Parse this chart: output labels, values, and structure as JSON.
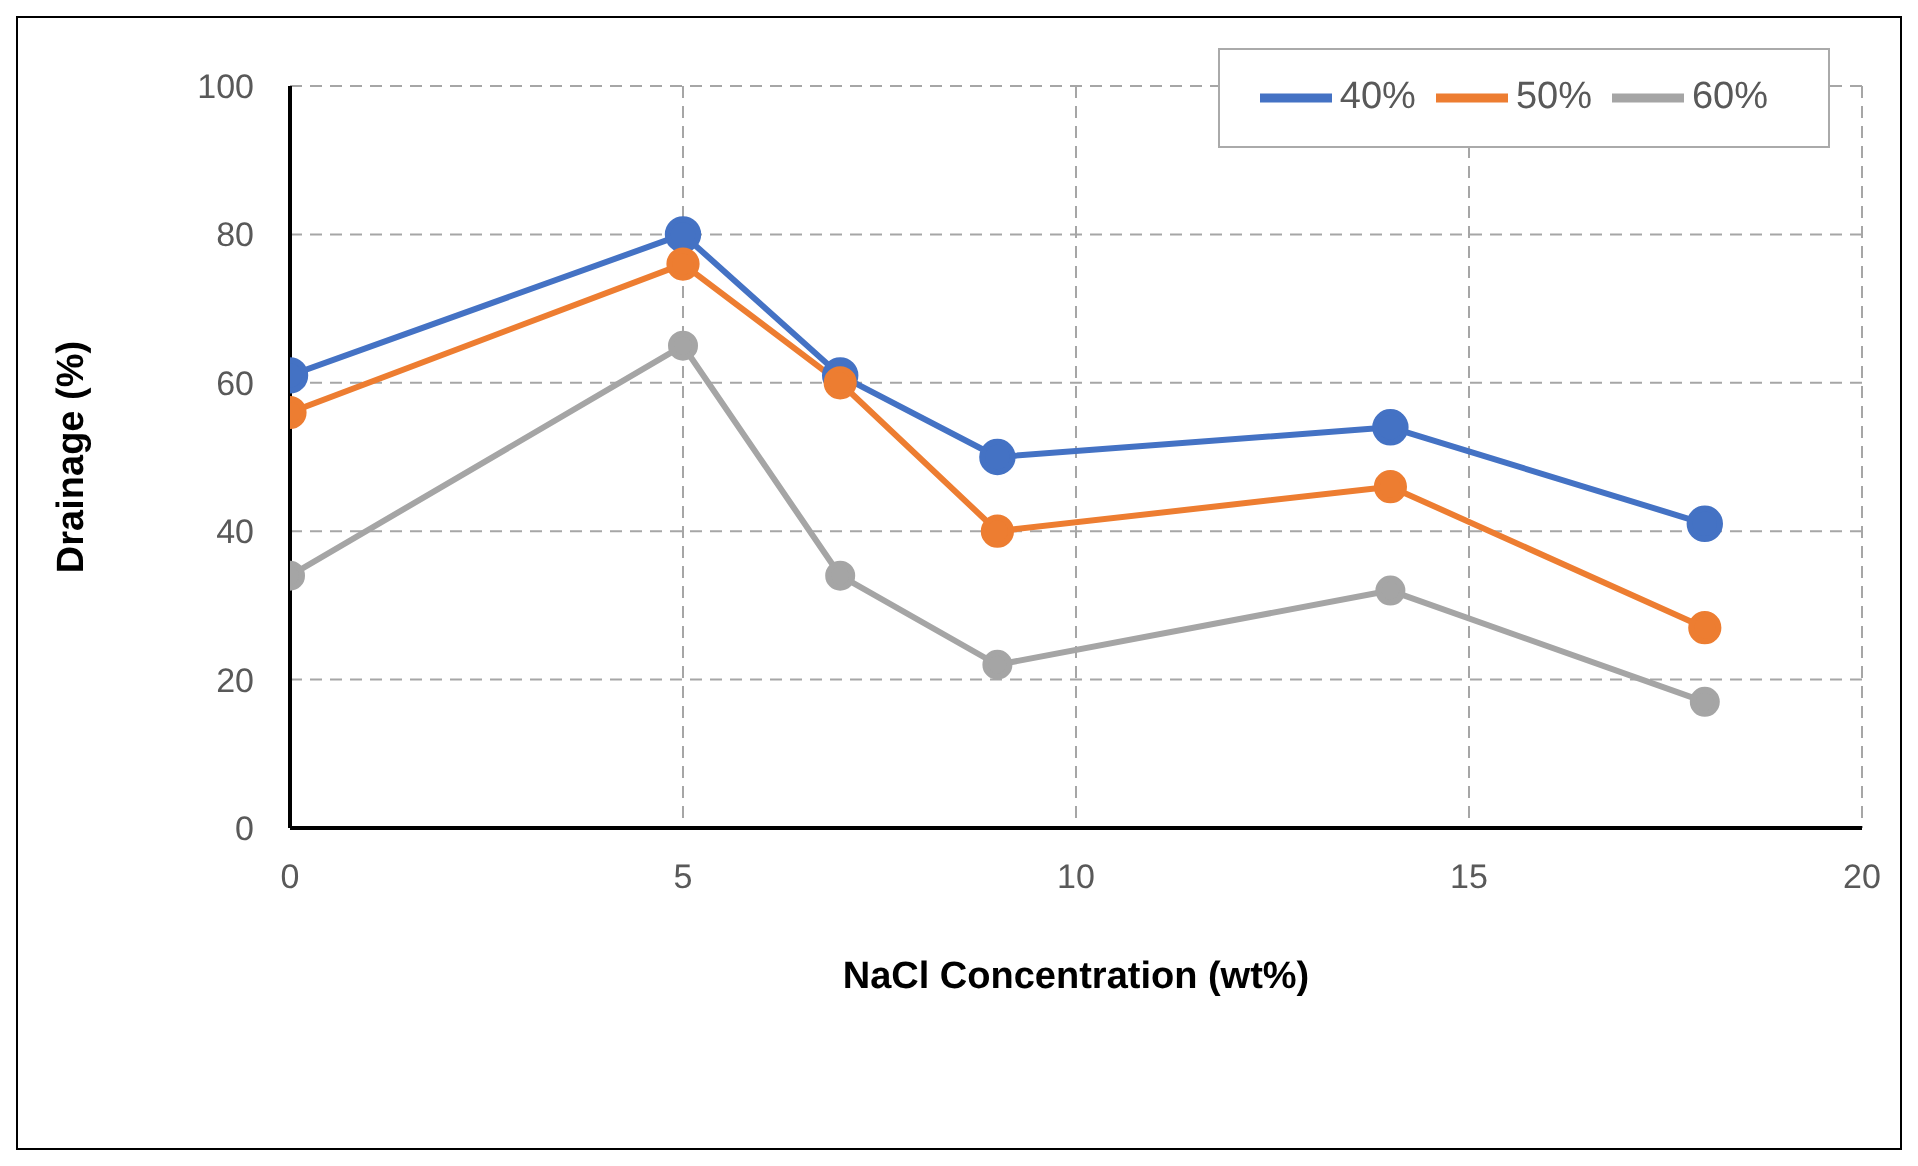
{
  "chart_data": {
    "type": "line",
    "xlabel": "NaCl Concentration (wt%)",
    "ylabel": "Drainage (%)",
    "x": [
      0,
      5,
      7,
      9,
      14,
      18
    ],
    "series": [
      {
        "name": "40%",
        "color": "#4472c4",
        "values": [
          61,
          80,
          61,
          50,
          54,
          41
        ]
      },
      {
        "name": "50%",
        "color": "#ed7d31",
        "values": [
          56,
          76,
          60,
          40,
          46,
          27
        ]
      },
      {
        "name": "60%",
        "color": "#a5a5a5",
        "values": [
          34,
          65,
          34,
          22,
          32,
          17
        ]
      }
    ],
    "xlim": [
      0,
      20
    ],
    "xticks": [
      0,
      5,
      10,
      15,
      20
    ],
    "ylim": [
      0,
      100
    ],
    "yticks": [
      0,
      20,
      40,
      60,
      80,
      100
    ],
    "grid": true,
    "legend": "top right",
    "marker": "circle",
    "line_style": "solid"
  }
}
